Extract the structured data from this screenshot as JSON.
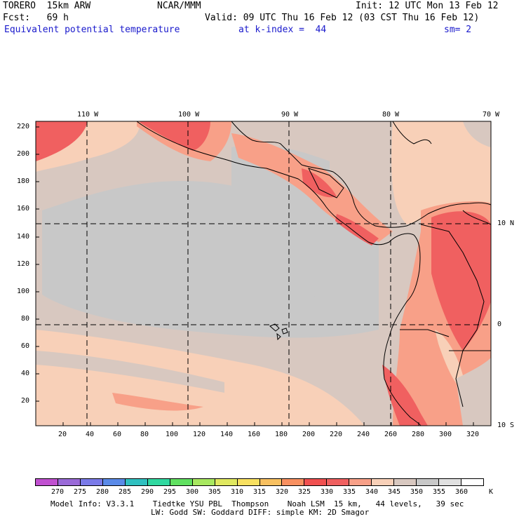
{
  "header": {
    "model": "TORERO  15km ARW",
    "org": "NCAR/MMM",
    "init": "Init: 12 UTC Mon 13 Feb 12",
    "fcst": "Fcst:   69 h",
    "valid": "Valid: 09 UTC Thu 16 Feb 12 (03 CST Thu 16 Feb 12)",
    "field": "Equivalent potential temperature",
    "level": "at k-index =  44",
    "smooth": "sm= 2"
  },
  "top_axis": [
    "110 W",
    "100 W",
    "90 W",
    "80 W",
    "70 W"
  ],
  "right_axis": [
    "10 N",
    "0",
    "10 S"
  ],
  "left_axis": [
    "220",
    "200",
    "180",
    "160",
    "140",
    "120",
    "100",
    "80",
    "60",
    "40",
    "20"
  ],
  "bottom_axis": [
    "20",
    "40",
    "60",
    "80",
    "100",
    "120",
    "140",
    "160",
    "180",
    "200",
    "220",
    "240",
    "260",
    "280",
    "300",
    "320"
  ],
  "colorbar": {
    "labels": [
      "270",
      "275",
      "280",
      "285",
      "290",
      "295",
      "300",
      "305",
      "310",
      "315",
      "320",
      "325",
      "330",
      "335",
      "340",
      "345",
      "350",
      "355",
      "360"
    ],
    "unit": "K",
    "colors": [
      "#c050d0",
      "#9a6ad8",
      "#7a7ae8",
      "#5a8ae8",
      "#30c0c0",
      "#30d8a0",
      "#60e060",
      "#a8e860",
      "#e0e860",
      "#f8e060",
      "#f8c060",
      "#f89060",
      "#f05050",
      "#f06060",
      "#f8a088",
      "#f8d0b8",
      "#d8c8c0",
      "#c8c8c8",
      "#e0e0e0",
      "#ffffff"
    ]
  },
  "footer": {
    "line1": "Model Info: V3.3.1    Tiedtke YSU PBL  Thompson    Noah LSM  15 km,   44 levels,   39 sec",
    "line2": "LW: Godd SW: Goddard DIFF: simple KM: 2D Smagor"
  },
  "palette": {
    "low": "#c8c8c8",
    "mid": "#d8c8c0",
    "warm": "#f8d0b8",
    "hot": "#f8a088",
    "hotter": "#f06060"
  }
}
